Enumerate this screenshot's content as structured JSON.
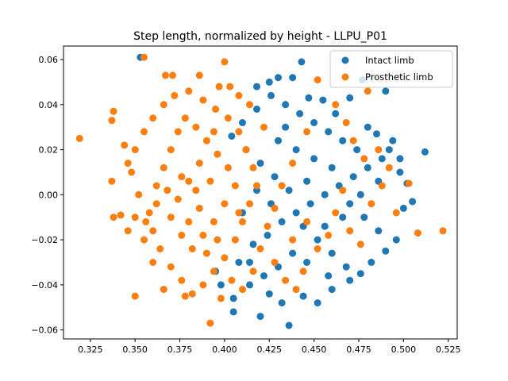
{
  "chart_data": {
    "type": "scatter",
    "title": "Step length, normalized by height - LLPU_P01",
    "xlabel": "",
    "ylabel": "",
    "xlim": [
      0.31,
      0.53
    ],
    "ylim": [
      -0.064,
      0.066
    ],
    "xticks": [
      0.325,
      0.35,
      0.375,
      0.4,
      0.425,
      0.45,
      0.475,
      0.5,
      0.525
    ],
    "xtick_labels": [
      "0.325",
      "0.350",
      "0.375",
      "0.400",
      "0.425",
      "0.450",
      "0.475",
      "0.500",
      "0.525"
    ],
    "yticks": [
      -0.06,
      -0.04,
      -0.02,
      0.0,
      0.02,
      0.04,
      0.06
    ],
    "ytick_labels": [
      "−0.06",
      "−0.04",
      "−0.02",
      "0.00",
      "0.02",
      "0.04",
      "0.06"
    ],
    "grid": false,
    "legend_position": "top-right",
    "series": [
      {
        "name": "Intact limb",
        "color": "#1f77b4",
        "points": [
          [
            0.353,
            0.061
          ],
          [
            0.443,
            0.059
          ],
          [
            0.477,
            0.051
          ],
          [
            0.49,
            0.046
          ],
          [
            0.512,
            0.019
          ],
          [
            0.505,
            -0.003
          ],
          [
            0.502,
            0.005
          ],
          [
            0.436,
            -0.058
          ],
          [
            0.405,
            -0.052
          ],
          [
            0.42,
            -0.054
          ],
          [
            0.447,
            0.043
          ],
          [
            0.425,
            0.05
          ],
          [
            0.43,
            0.052
          ],
          [
            0.438,
            0.052
          ],
          [
            0.418,
            0.048
          ],
          [
            0.455,
            0.042
          ],
          [
            0.462,
            0.036
          ],
          [
            0.47,
            0.043
          ],
          [
            0.48,
            0.03
          ],
          [
            0.485,
            0.027
          ],
          [
            0.492,
            0.02
          ],
          [
            0.498,
            0.016
          ],
          [
            0.498,
            0.01
          ],
          [
            0.5,
            -0.006
          ],
          [
            0.496,
            -0.02
          ],
          [
            0.49,
            -0.025
          ],
          [
            0.482,
            -0.03
          ],
          [
            0.476,
            -0.035
          ],
          [
            0.47,
            -0.038
          ],
          [
            0.46,
            -0.042
          ],
          [
            0.452,
            -0.048
          ],
          [
            0.444,
            -0.045
          ],
          [
            0.432,
            -0.048
          ],
          [
            0.425,
            -0.044
          ],
          [
            0.414,
            -0.04
          ],
          [
            0.405,
            -0.046
          ],
          [
            0.398,
            -0.04
          ],
          [
            0.395,
            -0.034
          ],
          [
            0.408,
            -0.03
          ],
          [
            0.416,
            -0.022
          ],
          [
            0.424,
            -0.018
          ],
          [
            0.432,
            -0.012
          ],
          [
            0.44,
            -0.008
          ],
          [
            0.448,
            -0.004
          ],
          [
            0.456,
            0.0
          ],
          [
            0.464,
            0.004
          ],
          [
            0.472,
            0.008
          ],
          [
            0.48,
            0.012
          ],
          [
            0.488,
            0.016
          ],
          [
            0.474,
            0.02
          ],
          [
            0.466,
            0.024
          ],
          [
            0.458,
            0.028
          ],
          [
            0.45,
            0.032
          ],
          [
            0.442,
            0.036
          ],
          [
            0.434,
            0.04
          ],
          [
            0.426,
            0.044
          ],
          [
            0.418,
            0.038
          ],
          [
            0.41,
            0.032
          ],
          [
            0.404,
            0.026
          ],
          [
            0.412,
            0.02
          ],
          [
            0.42,
            0.014
          ],
          [
            0.428,
            0.008
          ],
          [
            0.436,
            0.002
          ],
          [
            0.444,
            -0.014
          ],
          [
            0.452,
            -0.02
          ],
          [
            0.46,
            -0.026
          ],
          [
            0.468,
            -0.032
          ],
          [
            0.458,
            -0.036
          ],
          [
            0.446,
            -0.03
          ],
          [
            0.438,
            -0.026
          ],
          [
            0.43,
            -0.032
          ],
          [
            0.422,
            -0.036
          ],
          [
            0.414,
            -0.03
          ],
          [
            0.43,
            0.024
          ],
          [
            0.44,
            0.02
          ],
          [
            0.45,
            0.016
          ],
          [
            0.46,
            0.012
          ],
          [
            0.47,
            -0.004
          ],
          [
            0.478,
            -0.01
          ],
          [
            0.486,
            -0.016
          ],
          [
            0.494,
            0.024
          ],
          [
            0.486,
            0.006
          ],
          [
            0.476,
            0.0
          ],
          [
            0.466,
            -0.01
          ],
          [
            0.456,
            -0.014
          ],
          [
            0.446,
            0.006
          ],
          [
            0.426,
            -0.004
          ],
          [
            0.418,
            0.002
          ],
          [
            0.41,
            -0.008
          ],
          [
            0.434,
            0.03
          ]
        ]
      },
      {
        "name": "Prosthetic limb",
        "color": "#ff7f0e",
        "points": [
          [
            0.319,
            0.025
          ],
          [
            0.355,
            0.061
          ],
          [
            0.4,
            0.059
          ],
          [
            0.338,
            0.037
          ],
          [
            0.337,
            0.033
          ],
          [
            0.337,
            0.006
          ],
          [
            0.338,
            -0.01
          ],
          [
            0.342,
            -0.009
          ],
          [
            0.346,
            -0.016
          ],
          [
            0.35,
            -0.045
          ],
          [
            0.522,
            -0.016
          ],
          [
            0.503,
            0.005
          ],
          [
            0.508,
            -0.017
          ],
          [
            0.48,
            0.046
          ],
          [
            0.452,
            0.051
          ],
          [
            0.392,
            -0.057
          ],
          [
            0.397,
            0.048
          ],
          [
            0.403,
            0.048
          ],
          [
            0.367,
            0.053
          ],
          [
            0.371,
            0.053
          ],
          [
            0.386,
            0.053
          ],
          [
            0.378,
            -0.045
          ],
          [
            0.366,
            -0.042
          ],
          [
            0.36,
            -0.03
          ],
          [
            0.355,
            -0.02
          ],
          [
            0.35,
            -0.01
          ],
          [
            0.352,
            0.0
          ],
          [
            0.348,
            0.01
          ],
          [
            0.35,
            0.02
          ],
          [
            0.355,
            0.028
          ],
          [
            0.36,
            0.034
          ],
          [
            0.366,
            0.04
          ],
          [
            0.372,
            0.044
          ],
          [
            0.38,
            0.046
          ],
          [
            0.388,
            0.042
          ],
          [
            0.395,
            0.038
          ],
          [
            0.402,
            0.034
          ],
          [
            0.408,
            0.028
          ],
          [
            0.412,
            0.02
          ],
          [
            0.416,
            0.012
          ],
          [
            0.418,
            0.004
          ],
          [
            0.414,
            -0.004
          ],
          [
            0.41,
            -0.012
          ],
          [
            0.406,
            -0.02
          ],
          [
            0.4,
            -0.028
          ],
          [
            0.394,
            -0.034
          ],
          [
            0.388,
            -0.04
          ],
          [
            0.382,
            -0.044
          ],
          [
            0.376,
            -0.038
          ],
          [
            0.37,
            -0.032
          ],
          [
            0.364,
            -0.024
          ],
          [
            0.36,
            -0.016
          ],
          [
            0.358,
            -0.008
          ],
          [
            0.362,
            0.004
          ],
          [
            0.366,
            0.012
          ],
          [
            0.37,
            0.02
          ],
          [
            0.374,
            0.028
          ],
          [
            0.378,
            0.034
          ],
          [
            0.384,
            0.03
          ],
          [
            0.39,
            0.024
          ],
          [
            0.396,
            0.018
          ],
          [
            0.402,
            0.012
          ],
          [
            0.406,
            0.004
          ],
          [
            0.4,
            -0.004
          ],
          [
            0.394,
            -0.012
          ],
          [
            0.388,
            -0.018
          ],
          [
            0.382,
            -0.024
          ],
          [
            0.376,
            -0.018
          ],
          [
            0.37,
            -0.01
          ],
          [
            0.374,
            -0.002
          ],
          [
            0.38,
            0.006
          ],
          [
            0.386,
            0.014
          ],
          [
            0.392,
            0.006
          ],
          [
            0.386,
            -0.006
          ],
          [
            0.38,
            -0.012
          ],
          [
            0.398,
            -0.046
          ],
          [
            0.404,
            -0.038
          ],
          [
            0.41,
            -0.042
          ],
          [
            0.416,
            -0.034
          ],
          [
            0.42,
            -0.024
          ],
          [
            0.424,
            -0.014
          ],
          [
            0.428,
            -0.03
          ],
          [
            0.434,
            -0.038
          ],
          [
            0.44,
            -0.042
          ],
          [
            0.444,
            -0.034
          ],
          [
            0.438,
            -0.02
          ],
          [
            0.446,
            -0.012
          ],
          [
            0.452,
            -0.024
          ],
          [
            0.458,
            -0.018
          ],
          [
            0.462,
            -0.008
          ],
          [
            0.466,
            0.002
          ],
          [
            0.47,
            -0.016
          ],
          [
            0.476,
            -0.022
          ],
          [
            0.482,
            -0.004
          ],
          [
            0.488,
            0.004
          ],
          [
            0.492,
            0.012
          ],
          [
            0.496,
            -0.008
          ],
          [
            0.486,
            0.02
          ],
          [
            0.478,
            0.016
          ],
          [
            0.472,
            0.024
          ],
          [
            0.468,
            0.032
          ],
          [
            0.462,
            0.04
          ],
          [
            0.446,
            0.028
          ],
          [
            0.438,
            0.014
          ],
          [
            0.432,
            0.004
          ],
          [
            0.428,
            -0.006
          ],
          [
            0.422,
            0.03
          ],
          [
            0.414,
            0.04
          ],
          [
            0.408,
            0.044
          ],
          [
            0.394,
            0.028
          ],
          [
            0.384,
            0.002
          ],
          [
            0.376,
            0.008
          ],
          [
            0.368,
            0.002
          ],
          [
            0.362,
            -0.004
          ],
          [
            0.356,
            -0.012
          ],
          [
            0.346,
            0.014
          ],
          [
            0.344,
            0.022
          ],
          [
            0.39,
            -0.026
          ],
          [
            0.396,
            -0.02
          ],
          [
            0.408,
            -0.008
          ]
        ]
      }
    ]
  }
}
